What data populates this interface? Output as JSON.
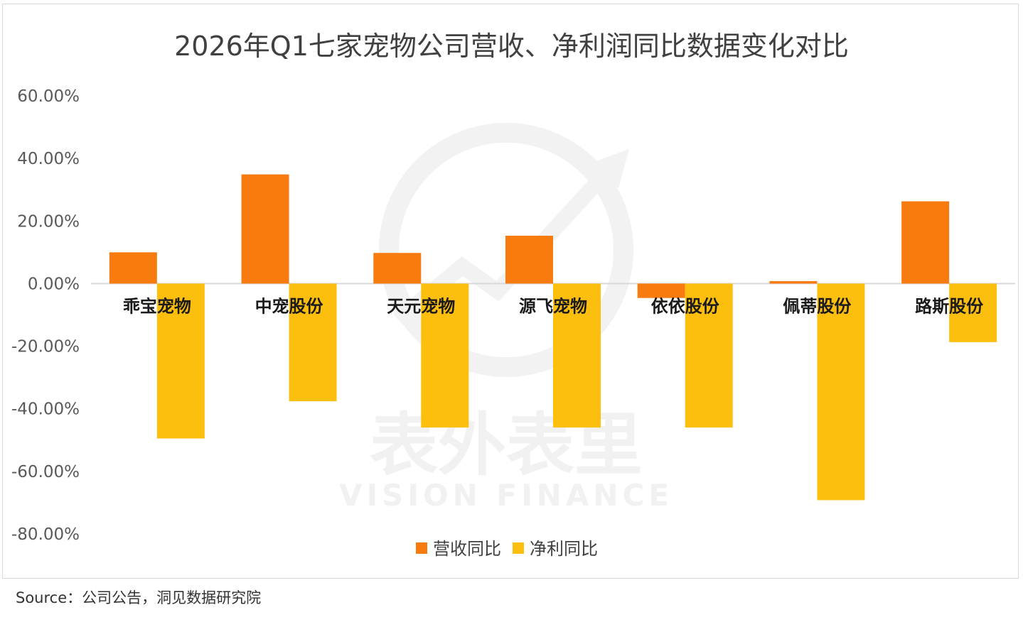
{
  "chart_data": {
    "type": "bar",
    "title": "2026年Q1七家宠物公司营收、净利润同比数据变化对比",
    "categories": [
      "乖宝宠物",
      "中宠股份",
      "天元宠物",
      "源飞宠物",
      "依依股份",
      "佩蒂股份",
      "路斯股份"
    ],
    "series": [
      {
        "name": "营收同比",
        "values": [
          10.0,
          34.9,
          9.8,
          15.3,
          -4.6,
          0.8,
          26.3
        ],
        "color": "#f77b0f"
      },
      {
        "name": "净利同比",
        "values": [
          -49.5,
          -37.6,
          -46.0,
          -46.0,
          -46.0,
          -69.2,
          -18.7
        ],
        "color": "#fdbf0e"
      }
    ],
    "ylim": [
      -80,
      60
    ],
    "yticks": [
      60,
      40,
      20,
      0,
      -20,
      -40,
      -60,
      -80
    ],
    "ytick_labels": [
      "60.00%",
      "40.00%",
      "20.00%",
      "0.00%",
      "-20.00%",
      "-40.00%",
      "-60.00%",
      "-80.00%"
    ],
    "xlabel": "",
    "ylabel": "",
    "grid": false,
    "legend_position": "bottom-center"
  },
  "watermark": {
    "cn": "表外表里",
    "en": "VISION FINANCE"
  },
  "source": "Source：公司公告，洞见数据研究院"
}
